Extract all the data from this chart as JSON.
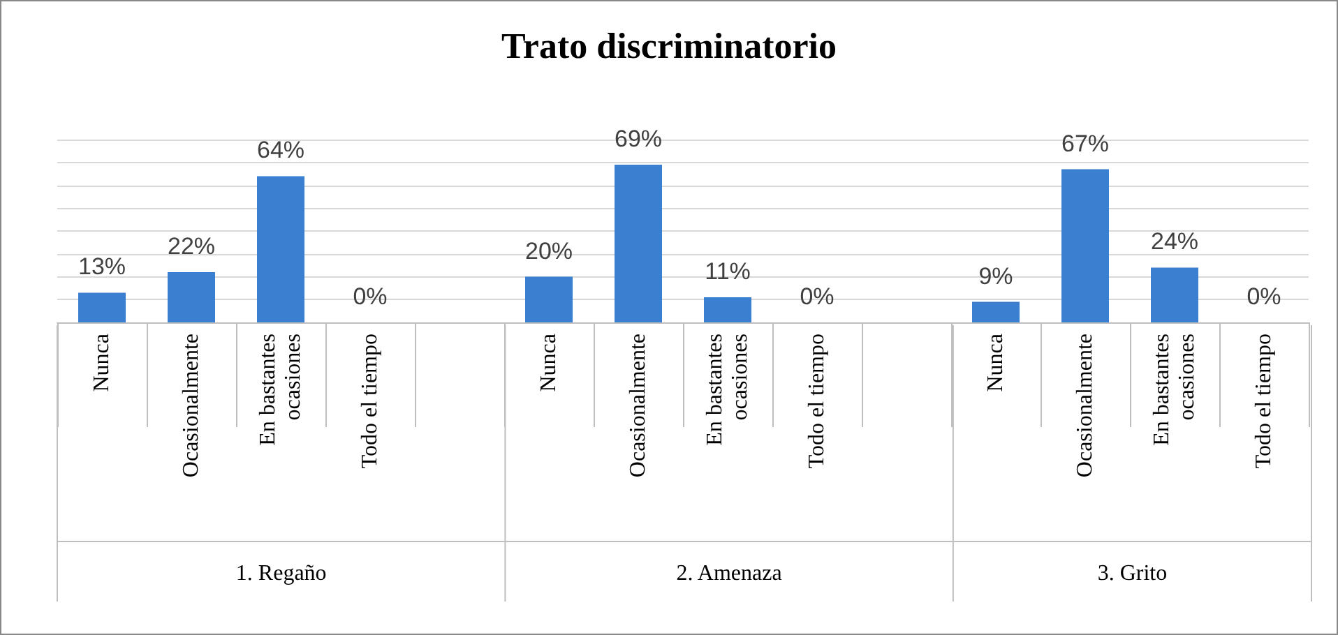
{
  "chart_data": {
    "type": "bar",
    "title": "Trato discriminatorio",
    "categories": [
      "Nunca",
      "Ocasionalmente",
      "En bastantes ocasiones",
      "Todo el tiempo",
      null,
      "Nunca",
      "Ocasionalmente",
      "En bastantes ocasiones",
      "Todo el tiempo",
      null,
      "Nunca",
      "Ocasionalmente",
      "En bastantes ocasiones",
      "Todo el tiempo"
    ],
    "values": [
      13,
      22,
      64,
      0,
      null,
      20,
      69,
      11,
      0,
      null,
      9,
      67,
      24,
      0
    ],
    "value_labels": [
      "13%",
      "22%",
      "64%",
      "0%",
      null,
      "20%",
      "69%",
      "11%",
      "0%",
      null,
      "9%",
      "67%",
      "24%",
      "0%"
    ],
    "color": "#3a7fd0",
    "annotations": [
      "1. Regaño",
      "2. Amenaza",
      "3. Grito"
    ],
    "ylim": [
      0,
      80
    ],
    "yticks": [
      {
        "value": 0,
        "label": null
      },
      {
        "value": 10,
        "label": null
      },
      {
        "value": 20,
        "label": null
      },
      {
        "value": 30,
        "label": null
      },
      {
        "value": 40,
        "label": null
      },
      {
        "value": 50,
        "label": null
      },
      {
        "value": 60,
        "label": null
      },
      {
        "value": 70,
        "label": null
      },
      {
        "value": 80,
        "label": null
      }
    ],
    "grid": "y",
    "tick_labels": "x"
  }
}
